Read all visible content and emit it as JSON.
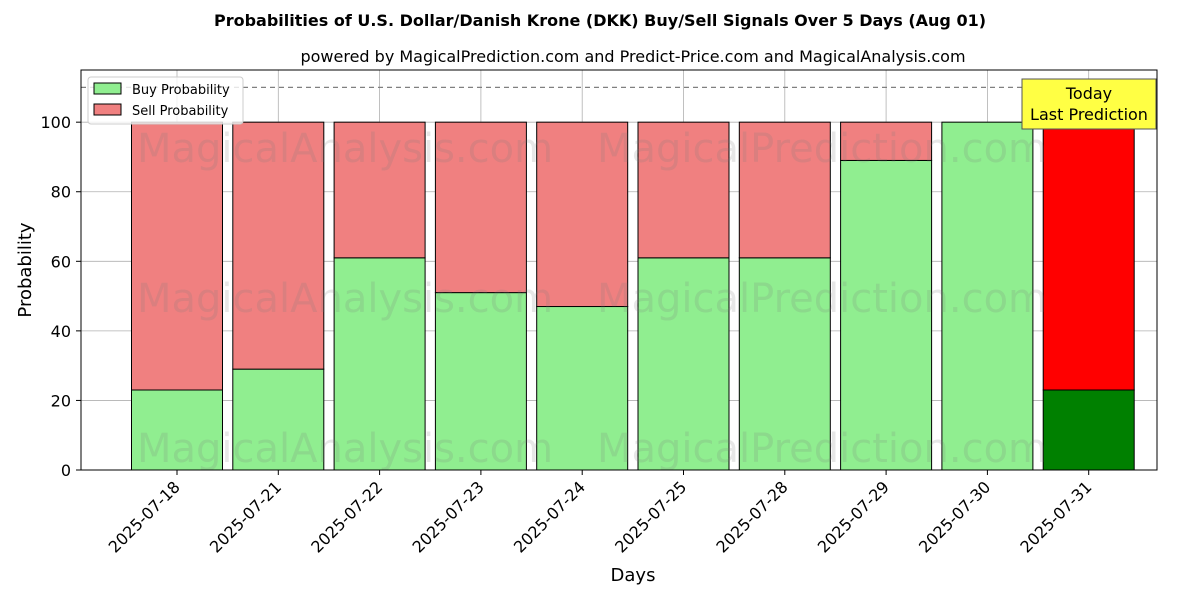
{
  "chart_data": {
    "type": "bar",
    "stacked": true,
    "title": "Probabilities of U.S. Dollar/Danish Krone (DKK) Buy/Sell Signals Over 5 Days (Aug 01)",
    "subtitle": "powered by MagicalPrediction.com and Predict-Price.com and MagicalAnalysis.com",
    "xlabel": "Days",
    "ylabel": "Probability",
    "ylim": [
      0,
      115
    ],
    "yticks": [
      0,
      20,
      40,
      60,
      80,
      100
    ],
    "grid": true,
    "legend_position": "top-left",
    "categories": [
      "2025-07-18",
      "2025-07-21",
      "2025-07-22",
      "2025-07-23",
      "2025-07-24",
      "2025-07-25",
      "2025-07-28",
      "2025-07-29",
      "2025-07-30",
      "2025-07-31"
    ],
    "series": [
      {
        "name": "Buy Probability",
        "values": [
          23,
          29,
          61,
          51,
          47,
          61,
          61,
          89,
          100,
          23
        ]
      },
      {
        "name": "Sell Probability",
        "values": [
          77,
          71,
          39,
          49,
          53,
          39,
          39,
          11,
          0,
          77
        ]
      }
    ],
    "colors": {
      "buy": "#90ee90",
      "sell": "#f08080",
      "buy_last": "#008000",
      "sell_last": "#ff0000",
      "annotation_bg": "#ffff44"
    },
    "reference_line": 110,
    "annotation": {
      "line1": "Today",
      "line2": "Last Prediction"
    },
    "watermarks": [
      "MagicalAnalysis.com",
      "MagicalPrediction.com",
      "MagicalAnalysis.com",
      "MagicalPrediction.com",
      "MagicalAnalysis.com",
      "MagicalPrediction.com"
    ]
  }
}
